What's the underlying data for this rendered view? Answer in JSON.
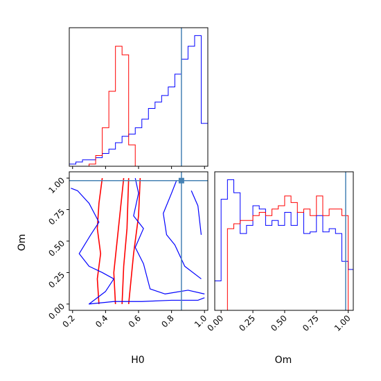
{
  "chart_data": [
    {
      "type": "histogram",
      "panel": "H0 marginal",
      "x_range": [
        0.18,
        1.02
      ],
      "bins": [
        0.18,
        0.22,
        0.26,
        0.3,
        0.34,
        0.38,
        0.42,
        0.46,
        0.5,
        0.54,
        0.58,
        0.62,
        0.66,
        0.7,
        0.74,
        0.78,
        0.82,
        0.86,
        0.9,
        0.94,
        0.98,
        1.02
      ],
      "series": [
        {
          "color": "#0000ff",
          "counts": [
            1,
            2,
            3,
            3,
            4,
            6,
            8,
            11,
            14,
            15,
            18,
            22,
            27,
            30,
            33,
            37,
            43,
            50,
            56,
            61,
            20
          ]
        },
        {
          "color": "#ff0000",
          "counts": [
            0,
            0,
            0,
            1,
            5,
            18,
            35,
            56,
            52,
            10,
            0,
            0,
            0,
            0,
            0,
            0,
            0,
            0,
            0,
            0,
            0
          ]
        }
      ],
      "truth_line": 0.86,
      "x_ticks": [
        "0.2",
        "0.4",
        "0.6",
        "0.8",
        "1.0"
      ]
    },
    {
      "type": "contour",
      "panel": "H0 vs Om",
      "xlabel": "H0",
      "ylabel": "Om",
      "x_range": [
        0.18,
        1.02
      ],
      "y_range": [
        -0.05,
        1.05
      ],
      "x_ticks": [
        "0.2",
        "0.4",
        "0.6",
        "0.8",
        "1.0"
      ],
      "y_ticks": [
        "0.00",
        "0.25",
        "0.50",
        "0.75",
        "1.00"
      ],
      "truth_point": {
        "x": 0.86,
        "y": 0.98
      },
      "series": [
        {
          "color": "#ff0000",
          "contours": [
            [
              [
                0.36,
                0.0
              ],
              [
                0.35,
                0.2
              ],
              [
                0.37,
                0.4
              ],
              [
                0.35,
                0.6
              ],
              [
                0.36,
                0.8
              ],
              [
                0.38,
                1.0
              ]
            ],
            [
              [
                0.46,
                0.0
              ],
              [
                0.45,
                0.25
              ],
              [
                0.47,
                0.5
              ],
              [
                0.49,
                0.75
              ],
              [
                0.51,
                1.0
              ]
            ],
            [
              [
                0.5,
                0.0
              ],
              [
                0.51,
                0.3
              ],
              [
                0.53,
                0.6
              ],
              [
                0.54,
                1.0
              ]
            ],
            [
              [
                0.54,
                0.0
              ],
              [
                0.57,
                0.4
              ],
              [
                0.6,
                0.7
              ],
              [
                0.61,
                1.0
              ]
            ]
          ]
        },
        {
          "color": "#0000ff",
          "contours": [
            [
              [
                0.19,
                0.92
              ],
              [
                0.23,
                0.9
              ],
              [
                0.3,
                0.8
              ],
              [
                0.36,
                0.65
              ],
              [
                0.31,
                0.55
              ],
              [
                0.24,
                0.4
              ],
              [
                0.3,
                0.3
              ],
              [
                0.38,
                0.25
              ],
              [
                0.45,
                0.2
              ],
              [
                0.4,
                0.1
              ],
              [
                0.3,
                0.0
              ],
              [
                0.45,
                0.02
              ],
              [
                0.62,
                0.02
              ],
              [
                0.8,
                0.03
              ],
              [
                0.96,
                0.03
              ],
              [
                1.0,
                0.05
              ]
            ],
            [
              [
                0.58,
                1.0
              ],
              [
                0.6,
                0.88
              ],
              [
                0.57,
                0.7
              ],
              [
                0.63,
                0.6
              ],
              [
                0.58,
                0.45
              ],
              [
                0.63,
                0.32
              ],
              [
                0.67,
                0.12
              ],
              [
                0.76,
                0.08
              ],
              [
                0.9,
                0.11
              ],
              [
                1.0,
                0.08
              ]
            ],
            [
              [
                0.83,
                0.98
              ],
              [
                0.8,
                0.88
              ],
              [
                0.75,
                0.72
              ],
              [
                0.77,
                0.55
              ],
              [
                0.82,
                0.47
              ],
              [
                0.88,
                0.3
              ],
              [
                0.98,
                0.2
              ]
            ],
            [
              [
                0.92,
                0.9
              ],
              [
                0.96,
                0.78
              ],
              [
                0.98,
                0.55
              ]
            ]
          ]
        }
      ]
    },
    {
      "type": "histogram",
      "panel": "Om marginal",
      "xlabel": "Om",
      "x_range": [
        -0.05,
        1.04
      ],
      "bins": [
        -0.05,
        0.0,
        0.05,
        0.1,
        0.15,
        0.2,
        0.25,
        0.3,
        0.35,
        0.4,
        0.45,
        0.5,
        0.55,
        0.6,
        0.65,
        0.7,
        0.75,
        0.8,
        0.85,
        0.9,
        0.95,
        1.0,
        1.04
      ],
      "series": [
        {
          "color": "#0000ff",
          "counts": [
            18,
            68,
            80,
            72,
            47,
            52,
            64,
            62,
            52,
            55,
            52,
            60,
            52,
            60,
            47,
            48,
            58,
            48,
            50,
            47,
            30,
            25
          ]
        },
        {
          "color": "#ff0000",
          "counts": [
            0,
            0,
            50,
            53,
            55,
            55,
            58,
            60,
            58,
            62,
            64,
            70,
            66,
            60,
            62,
            58,
            70,
            58,
            62,
            62,
            58,
            0
          ]
        }
      ],
      "truth_line": 0.98,
      "x_ticks": [
        "0.00",
        "0.25",
        "0.50",
        "0.75",
        "1.00"
      ]
    }
  ]
}
